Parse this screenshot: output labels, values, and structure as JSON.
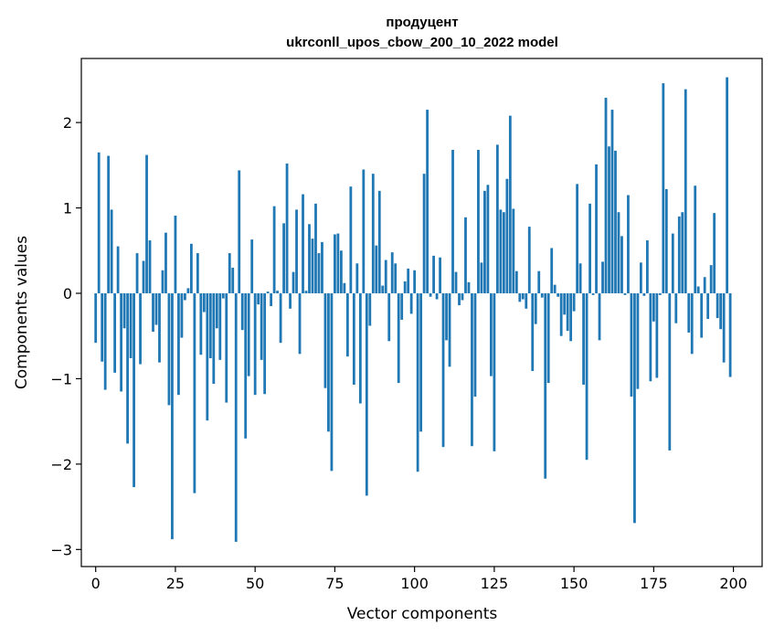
{
  "chart_data": {
    "type": "bar",
    "title": "продуцент",
    "subtitle": "ukrconll_upos_cbow_200_10_2022 model",
    "xlabel": "Vector components",
    "ylabel": "Components values",
    "xlim": [
      -4.5,
      209
    ],
    "ylim": [
      -3.2,
      2.75
    ],
    "xticks": [
      0,
      25,
      50,
      75,
      100,
      125,
      150,
      175,
      200
    ],
    "xtick_labels": [
      "0",
      "25",
      "50",
      "75",
      "100",
      "125",
      "150",
      "175",
      "200"
    ],
    "yticks": [
      -3,
      -2,
      -1,
      0,
      1,
      2
    ],
    "ytick_labels": [
      "−3",
      "−2",
      "−1",
      "0",
      "1",
      "2"
    ],
    "grid": false,
    "bar_color": "#1f77b4",
    "x": [
      0,
      1,
      2,
      3,
      4,
      5,
      6,
      7,
      8,
      9,
      10,
      11,
      12,
      13,
      14,
      15,
      16,
      17,
      18,
      19,
      20,
      21,
      22,
      23,
      24,
      25,
      26,
      27,
      28,
      29,
      30,
      31,
      32,
      33,
      34,
      35,
      36,
      37,
      38,
      39,
      40,
      41,
      42,
      43,
      44,
      45,
      46,
      47,
      48,
      49,
      50,
      51,
      52,
      53,
      54,
      55,
      56,
      57,
      58,
      59,
      60,
      61,
      62,
      63,
      64,
      65,
      66,
      67,
      68,
      69,
      70,
      71,
      72,
      73,
      74,
      75,
      76,
      77,
      78,
      79,
      80,
      81,
      82,
      83,
      84,
      85,
      86,
      87,
      88,
      89,
      90,
      91,
      92,
      93,
      94,
      95,
      96,
      97,
      98,
      99,
      100,
      101,
      102,
      103,
      104,
      105,
      106,
      107,
      108,
      109,
      110,
      111,
      112,
      113,
      114,
      115,
      116,
      117,
      118,
      119,
      120,
      121,
      122,
      123,
      124,
      125,
      126,
      127,
      128,
      129,
      130,
      131,
      132,
      133,
      134,
      135,
      136,
      137,
      138,
      139,
      140,
      141,
      142,
      143,
      144,
      145,
      146,
      147,
      148,
      149,
      150,
      151,
      152,
      153,
      154,
      155,
      156,
      157,
      158,
      159,
      160,
      161,
      162,
      163,
      164,
      165,
      166,
      167,
      168,
      169,
      170,
      171,
      172,
      173,
      174,
      175,
      176,
      177,
      178,
      179,
      180,
      181,
      182,
      183,
      184,
      185,
      186,
      187,
      188,
      189,
      190,
      191,
      192,
      193,
      194,
      195,
      196,
      197,
      198,
      199
    ],
    "values": [
      -0.58,
      1.65,
      -0.8,
      -1.13,
      1.61,
      0.98,
      -0.93,
      0.55,
      -1.15,
      -0.41,
      -1.76,
      -0.76,
      -2.27,
      0.47,
      -0.83,
      0.38,
      1.62,
      0.62,
      -0.45,
      -0.37,
      -0.81,
      0.27,
      0.71,
      -1.31,
      -2.88,
      0.91,
      -1.19,
      -0.52,
      -0.08,
      0.06,
      0.58,
      -2.34,
      0.47,
      -0.72,
      -0.22,
      -1.49,
      -0.76,
      -1.06,
      -0.41,
      -0.78,
      -0.06,
      -1.28,
      0.47,
      0.3,
      -2.91,
      1.44,
      -0.43,
      -1.7,
      -0.97,
      0.63,
      -1.19,
      -0.13,
      -0.78,
      -1.18,
      0.02,
      -0.15,
      1.02,
      0.03,
      -0.58,
      0.82,
      1.52,
      -0.18,
      0.25,
      0.98,
      -0.71,
      1.16,
      0.03,
      0.81,
      0.64,
      1.05,
      0.47,
      0.6,
      -1.11,
      -1.62,
      -2.08,
      0.69,
      0.7,
      0.5,
      0.12,
      -0.74,
      1.25,
      -1.07,
      0.35,
      -1.29,
      1.45,
      -2.37,
      -0.38,
      1.4,
      0.56,
      1.2,
      0.09,
      0.39,
      -0.56,
      0.48,
      0.35,
      -1.05,
      -0.31,
      0.14,
      0.29,
      -0.24,
      0.27,
      -2.09,
      -1.62,
      1.4,
      2.15,
      -0.04,
      0.44,
      -0.07,
      0.42,
      -1.8,
      -0.55,
      -0.86,
      1.68,
      0.25,
      -0.14,
      -0.08,
      0.89,
      0.13,
      -1.79,
      -1.21,
      1.68,
      0.36,
      1.2,
      1.27,
      -0.97,
      -1.85,
      1.74,
      0.98,
      0.95,
      1.34,
      2.08,
      0.99,
      0.26,
      -0.1,
      -0.07,
      -0.18,
      0.78,
      -0.91,
      -0.36,
      0.26,
      -0.05,
      -2.17,
      -1.05,
      0.53,
      0.1,
      -0.04,
      -0.5,
      -0.25,
      -0.44,
      -0.56,
      -0.21,
      1.28,
      0.35,
      -1.07,
      -1.95,
      1.05,
      -0.02,
      1.51,
      -0.55,
      0.37,
      2.29,
      1.72,
      2.15,
      1.67,
      0.95,
      0.67,
      -0.02,
      1.15,
      -1.21,
      -2.69,
      -1.12,
      0.36,
      -0.03,
      0.62,
      -1.03,
      -0.33,
      -0.99,
      -0.02,
      2.46,
      1.22,
      -1.84,
      0.7,
      -0.35,
      0.9,
      0.95,
      2.39,
      -0.46,
      -0.71,
      1.26,
      0.08,
      -0.52,
      0.19,
      -0.3,
      0.33,
      0.94,
      -0.29,
      -0.42,
      -0.81,
      2.53,
      -0.98
    ]
  }
}
